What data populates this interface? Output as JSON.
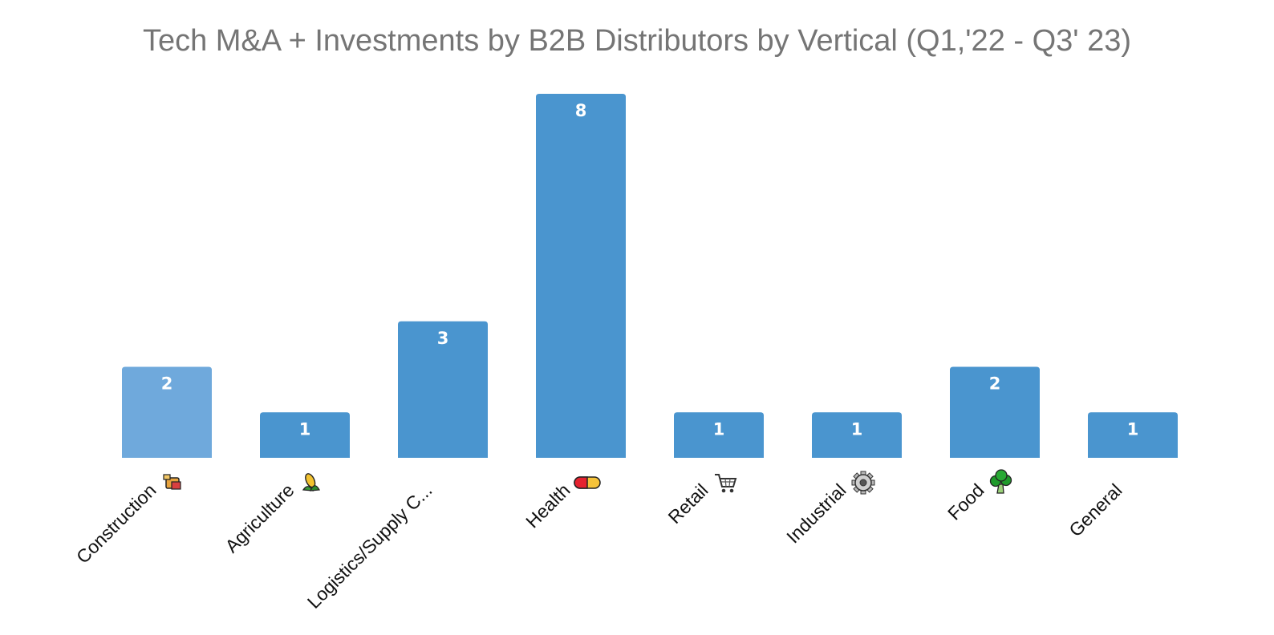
{
  "chart_data": {
    "type": "bar",
    "title": "Tech M&A + Investments by B2B Distributors by Vertical (Q1,'22 - Q3' 23)",
    "categories": [
      "Construction",
      "Agriculture",
      "Logistics/Supply C...",
      "Health",
      "Retail",
      "Industrial",
      "Food",
      "General"
    ],
    "category_icons": [
      "construction-icon",
      "corn-icon",
      "",
      "pill-icon",
      "shopping-cart-icon",
      "gear-icon",
      "broccoli-icon",
      ""
    ],
    "values": [
      2,
      1,
      3,
      8,
      1,
      1,
      2,
      1
    ],
    "ylim": [
      0,
      8
    ],
    "grid": false,
    "legend": "none",
    "bar_color": "#4a95cf",
    "highlight_color": "#6fa9dc",
    "highlight_index": 0,
    "value_labels": true
  }
}
